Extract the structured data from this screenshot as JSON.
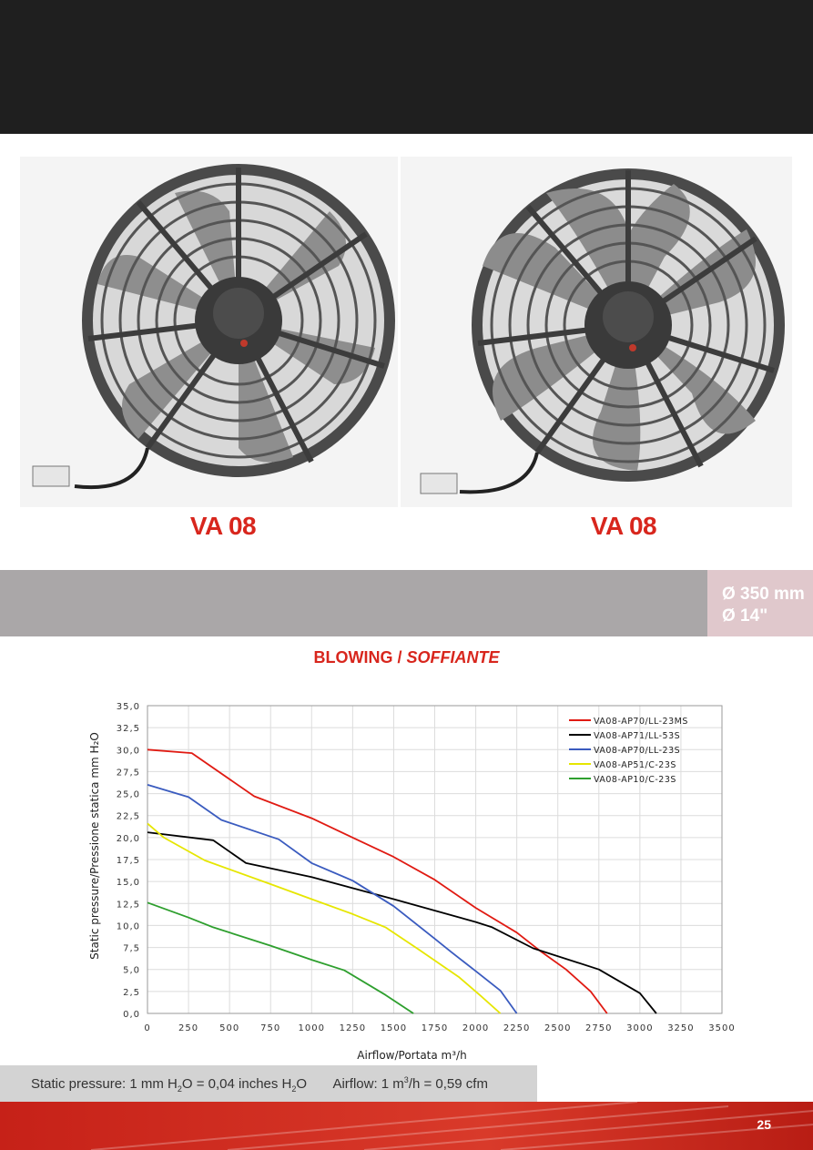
{
  "products": [
    {
      "label": "VA 08"
    },
    {
      "label": "VA 08"
    }
  ],
  "size": {
    "mm": "Ø 350 mm",
    "inch": "Ø 14\""
  },
  "section": {
    "title_main": "BLOWING / ",
    "title_italic": "SOFFIANTE"
  },
  "chart_data": {
    "type": "line",
    "title": "BLOWING / SOFFIANTE",
    "xlabel": "Airflow/Portata m³/h",
    "ylabel": "Static pressure/Pressione statica mm H₂O",
    "xlim": [
      0,
      3500
    ],
    "ylim": [
      0,
      35
    ],
    "x_ticks": [
      "0",
      "250",
      "500",
      "750",
      "1000",
      "1250",
      "1500",
      "1750",
      "2000",
      "2250",
      "2500",
      "2750",
      "3000",
      "3250",
      "3500"
    ],
    "y_ticks": [
      "0,0",
      "2,5",
      "5,0",
      "7,5",
      "10,0",
      "12,5",
      "15,0",
      "17,5",
      "20,0",
      "22,5",
      "25,0",
      "27,5",
      "30,0",
      "32,5",
      "35,0"
    ],
    "grid": true,
    "legend_position": "top-right",
    "series": [
      {
        "name": "VA08-AP70/LL-23MS",
        "color": "#e01a12",
        "points": [
          [
            0,
            30
          ],
          [
            270,
            29.6
          ],
          [
            650,
            24.7
          ],
          [
            1000,
            22.2
          ],
          [
            1250,
            20
          ],
          [
            1500,
            17.8
          ],
          [
            1750,
            15.2
          ],
          [
            2000,
            12
          ],
          [
            2250,
            9.2
          ],
          [
            2400,
            7
          ],
          [
            2550,
            5
          ],
          [
            2700,
            2.5
          ],
          [
            2800,
            0
          ]
        ]
      },
      {
        "name": "VA08-AP71/LL-53S",
        "color": "#000000",
        "points": [
          [
            0,
            20.6
          ],
          [
            400,
            19.7
          ],
          [
            600,
            17.1
          ],
          [
            1000,
            15.5
          ],
          [
            1500,
            13
          ],
          [
            2000,
            10.4
          ],
          [
            2100,
            9.8
          ],
          [
            2350,
            7.4
          ],
          [
            2750,
            5
          ],
          [
            3000,
            2.3
          ],
          [
            3100,
            0
          ]
        ]
      },
      {
        "name": "VA08-AP70/LL-23S",
        "color": "#3a5bbf",
        "points": [
          [
            0,
            26
          ],
          [
            250,
            24.6
          ],
          [
            450,
            22
          ],
          [
            800,
            19.8
          ],
          [
            1000,
            17.1
          ],
          [
            1250,
            15.1
          ],
          [
            1500,
            12.2
          ],
          [
            1750,
            8.5
          ],
          [
            1850,
            7
          ],
          [
            2000,
            4.8
          ],
          [
            2150,
            2.6
          ],
          [
            2250,
            0
          ]
        ]
      },
      {
        "name": "VA08-AP51/C-23S",
        "color": "#e6e600",
        "points": [
          [
            0,
            21.6
          ],
          [
            100,
            20
          ],
          [
            350,
            17.4
          ],
          [
            750,
            14.7
          ],
          [
            1000,
            13
          ],
          [
            1250,
            11.3
          ],
          [
            1450,
            9.8
          ],
          [
            1650,
            7.3
          ],
          [
            1900,
            4.1
          ],
          [
            2030,
            2
          ],
          [
            2150,
            0
          ]
        ]
      },
      {
        "name": "VA08-AP10/C-23S",
        "color": "#2e9f2e",
        "points": [
          [
            0,
            12.6
          ],
          [
            250,
            10.9
          ],
          [
            400,
            9.8
          ],
          [
            750,
            7.7
          ],
          [
            1000,
            6.1
          ],
          [
            1200,
            4.9
          ],
          [
            1450,
            2.1
          ],
          [
            1620,
            0
          ]
        ]
      }
    ]
  },
  "footer": {
    "static_prefix": "Static pressure: 1 mm H",
    "static_sub1": "2",
    "static_mid": "O = 0,04 inches H",
    "static_sub2": "2",
    "static_end": "O",
    "airflow_prefix": "Airflow: 1 m",
    "airflow_sup": "3",
    "airflow_end": "/h = 0,59 cfm"
  },
  "page_number": "25"
}
